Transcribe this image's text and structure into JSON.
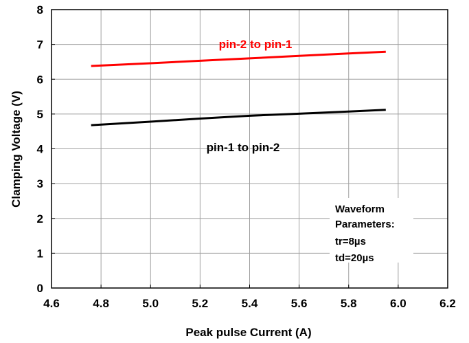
{
  "chart_data": {
    "type": "line",
    "xlabel": "Peak pulse Current (A)",
    "ylabel": "Clamping Voltage (V)",
    "xlim": [
      4.6,
      6.2
    ],
    "ylim": [
      0,
      8
    ],
    "x_ticks": [
      "4.6",
      "4.8",
      "5.0",
      "5.2",
      "5.4",
      "5.6",
      "5.8",
      "6.0",
      "6.2"
    ],
    "y_ticks": [
      "0",
      "1",
      "2",
      "3",
      "4",
      "5",
      "6",
      "7",
      "8"
    ],
    "grid": true,
    "series": [
      {
        "name": "pin-2 to pin-1",
        "color": "#ff0000",
        "x": [
          4.76,
          5.0,
          5.2,
          5.4,
          5.6,
          5.8,
          5.95
        ],
        "y": [
          6.38,
          6.46,
          6.53,
          6.6,
          6.67,
          6.74,
          6.79
        ]
      },
      {
        "name": "pin-1 to pin-2",
        "color": "#000000",
        "x": [
          4.76,
          5.0,
          5.2,
          5.4,
          5.6,
          5.8,
          5.95
        ],
        "y": [
          4.68,
          4.78,
          4.87,
          4.95,
          5.01,
          5.07,
          5.12
        ]
      }
    ],
    "annotation_box": [
      "Waveform",
      "Parameters:",
      "tr=8µs",
      "td=20µs"
    ]
  }
}
